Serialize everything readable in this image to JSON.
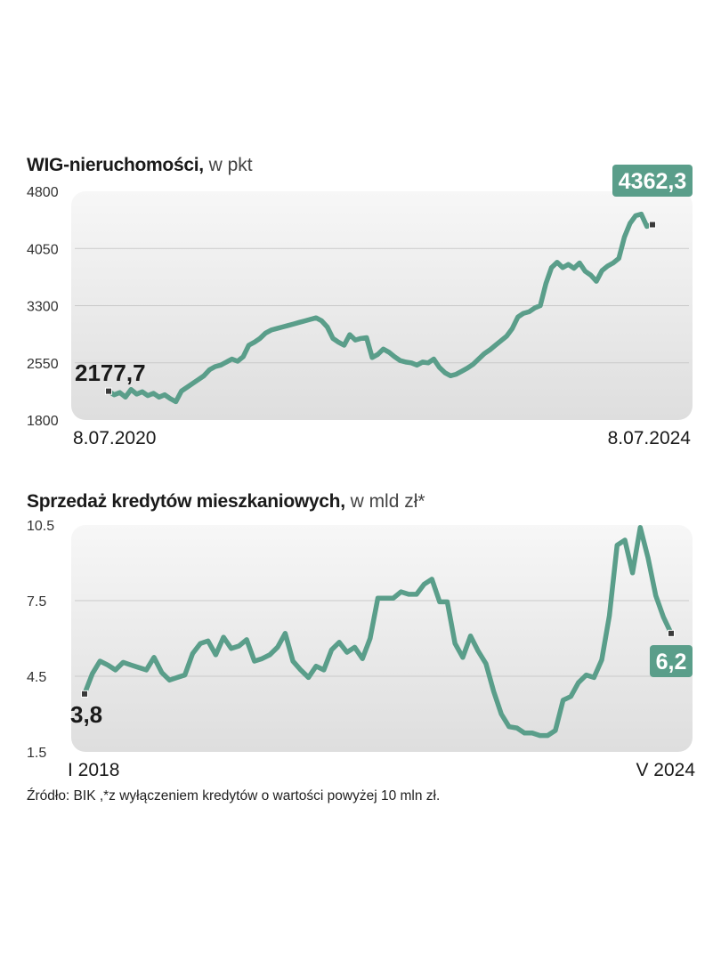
{
  "source": "Źródło: BIK ,*z wyłączeniem kredytów o wartości powyżej 10 mln zł.",
  "colors": {
    "line": "#5a9e8a",
    "badge": "#5a9e8a",
    "grid": "#c9c9c9",
    "marker": "#3a3a3a"
  },
  "chart_data": [
    {
      "type": "line",
      "title": "WIG-nieruchomości,",
      "unit": " w pkt",
      "ylim": [
        1800,
        4800
      ],
      "yticks": [
        "4800",
        "4050",
        "3300",
        "2550",
        "1800"
      ],
      "ytick_values": [
        4800,
        4050,
        3300,
        2550,
        1800
      ],
      "xlabels": [
        "8.07.2020",
        "8.07.2024"
      ],
      "start_label": "2177,7",
      "end_label": "4362,3",
      "series": [
        {
          "name": "WIG-nieruchomości",
          "x": [
            0,
            0.5,
            1,
            1.5,
            2,
            2.5,
            3,
            3.5,
            4,
            4.5,
            5,
            5.5,
            6,
            6.5,
            7,
            7.5,
            8,
            8.5,
            9,
            9.5,
            10,
            10.5,
            11,
            11.5,
            12,
            12.5,
            13,
            13.5,
            14,
            14.5,
            15,
            15.5,
            16,
            16.5,
            17,
            17.5,
            18,
            18.5,
            19,
            19.5,
            20,
            20.5,
            21,
            21.5,
            22,
            22.5,
            23,
            23.5,
            24,
            24.5,
            25,
            25.5,
            26,
            26.5,
            27,
            27.5,
            28,
            28.5,
            29,
            29.5,
            30,
            30.5,
            31,
            31.5,
            32,
            32.5,
            33,
            33.5,
            34,
            34.5,
            35,
            35.5,
            36,
            36.5,
            37,
            37.5,
            38,
            38.5,
            39,
            39.5,
            40,
            40.5,
            41,
            41.5,
            42,
            42.5,
            43,
            43.5,
            44,
            44.5,
            45,
            45.5,
            46,
            46.5,
            47,
            47.5,
            48,
            48.5
          ],
          "values": [
            2177.7,
            2130,
            2160,
            2100,
            2200,
            2140,
            2170,
            2120,
            2150,
            2100,
            2130,
            2080,
            2040,
            2180,
            2230,
            2280,
            2330,
            2380,
            2460,
            2500,
            2520,
            2560,
            2600,
            2570,
            2630,
            2780,
            2820,
            2870,
            2940,
            2980,
            3000,
            3020,
            3040,
            3060,
            3080,
            3100,
            3120,
            3140,
            3100,
            3020,
            2870,
            2820,
            2780,
            2920,
            2850,
            2870,
            2880,
            2620,
            2660,
            2730,
            2690,
            2630,
            2580,
            2560,
            2550,
            2520,
            2560,
            2550,
            2600,
            2490,
            2420,
            2380,
            2400,
            2440,
            2480,
            2530,
            2600,
            2670,
            2720,
            2780,
            2840,
            2900,
            3000,
            3150,
            3200,
            3220,
            3270,
            3300,
            3590,
            3800,
            3870,
            3800,
            3840,
            3790,
            3860,
            3750,
            3700,
            3620,
            3760,
            3820,
            3860,
            3920,
            4200,
            4380,
            4480,
            4500,
            4340,
            4362.3
          ]
        }
      ]
    },
    {
      "type": "line",
      "title": "Sprzedaż kredytów mieszkaniowych,",
      "unit": " w mld zł*",
      "ylim": [
        1.5,
        10.5
      ],
      "yticks": [
        "10.5",
        "7.5",
        "4.5",
        "1.5"
      ],
      "ytick_values": [
        10.5,
        7.5,
        4.5,
        1.5
      ],
      "xlabels": [
        "I 2018",
        "V 2024"
      ],
      "start_label": "3,8",
      "end_label": "6,2",
      "series": [
        {
          "name": "Sprzedaż kredytów mieszkaniowych",
          "x": [
            0,
            1,
            2,
            3,
            4,
            5,
            6,
            7,
            8,
            9,
            10,
            11,
            12,
            13,
            14,
            15,
            16,
            17,
            18,
            19,
            20,
            21,
            22,
            23,
            24,
            25,
            26,
            27,
            28,
            29,
            30,
            31,
            32,
            33,
            34,
            35,
            36,
            37,
            38,
            39,
            40,
            41,
            42,
            43,
            44,
            45,
            46,
            47,
            48,
            49,
            50,
            51,
            52,
            53,
            54,
            55,
            56,
            57,
            58,
            59,
            60,
            61,
            62,
            63,
            64,
            65,
            66,
            67,
            68,
            69,
            70,
            71,
            72,
            73,
            74,
            75,
            76
          ],
          "values": [
            3.8,
            4.6,
            5.1,
            4.95,
            4.75,
            5.05,
            4.95,
            4.85,
            4.75,
            5.25,
            4.65,
            4.35,
            4.45,
            4.55,
            5.4,
            5.8,
            5.9,
            5.35,
            6.05,
            5.6,
            5.7,
            5.95,
            5.1,
            5.2,
            5.35,
            5.65,
            6.2,
            5.1,
            4.75,
            4.45,
            4.9,
            4.75,
            5.55,
            5.85,
            5.45,
            5.65,
            5.2,
            6.0,
            7.6,
            7.6,
            7.6,
            7.85,
            7.75,
            7.75,
            8.15,
            8.35,
            7.45,
            7.45,
            5.8,
            5.25,
            6.1,
            5.5,
            5.0,
            3.9,
            3.0,
            2.5,
            2.45,
            2.25,
            2.25,
            2.15,
            2.15,
            2.35,
            3.55,
            3.7,
            4.25,
            4.55,
            4.45,
            5.15,
            6.9,
            9.7,
            9.9,
            8.6,
            10.4,
            9.2,
            7.7,
            6.85,
            6.2
          ]
        }
      ]
    }
  ]
}
